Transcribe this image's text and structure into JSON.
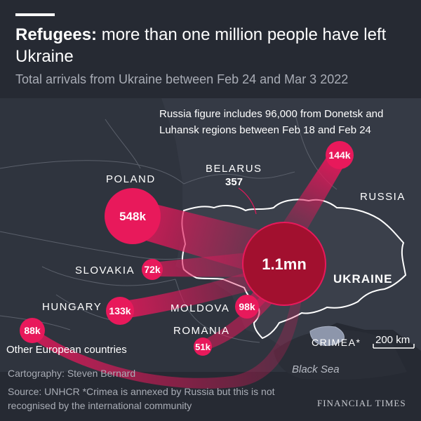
{
  "header": {
    "title_bold": "Refugees:",
    "title_rest": " more than one million people have left Ukraine",
    "subtitle": "Total arrivals from Ukraine between Feb 24 and Mar 3 2022"
  },
  "note": "Russia figure includes 96,000 from Donetsk and Luhansk regions between Feb 18 and Feb 24",
  "countries": {
    "poland": "POLAND",
    "belarus": "BELARUS",
    "russia": "RUSSIA",
    "ukraine": "UKRAINE",
    "slovakia": "SLOVAKIA",
    "hungary": "HUNGARY",
    "moldova": "MOLDOVA",
    "romania": "ROMANIA",
    "crimea": "CRIMEA*"
  },
  "bubbles": {
    "ukraine_total": "1.1mn",
    "poland": "548k",
    "russia": "144k",
    "slovakia": "72k",
    "hungary": "133k",
    "moldova": "98k",
    "romania": "51k",
    "other": "88k",
    "belarus": "357"
  },
  "labels": {
    "other_countries": "Other European countries",
    "black_sea": "Black Sea",
    "scale": "200 km"
  },
  "footer": {
    "cartography": "Cartography: Steven Bernard",
    "source": "Source: UNHCR   *Crimea is annexed by Russia but this is not recognised by the international community",
    "brand": "FINANCIAL TIMES"
  },
  "colors": {
    "background": "#262a33",
    "flow": "#e0195a",
    "bubble": "#e8195b",
    "ukraine_bubble": "#a2102f",
    "border": "#ffffff"
  }
}
